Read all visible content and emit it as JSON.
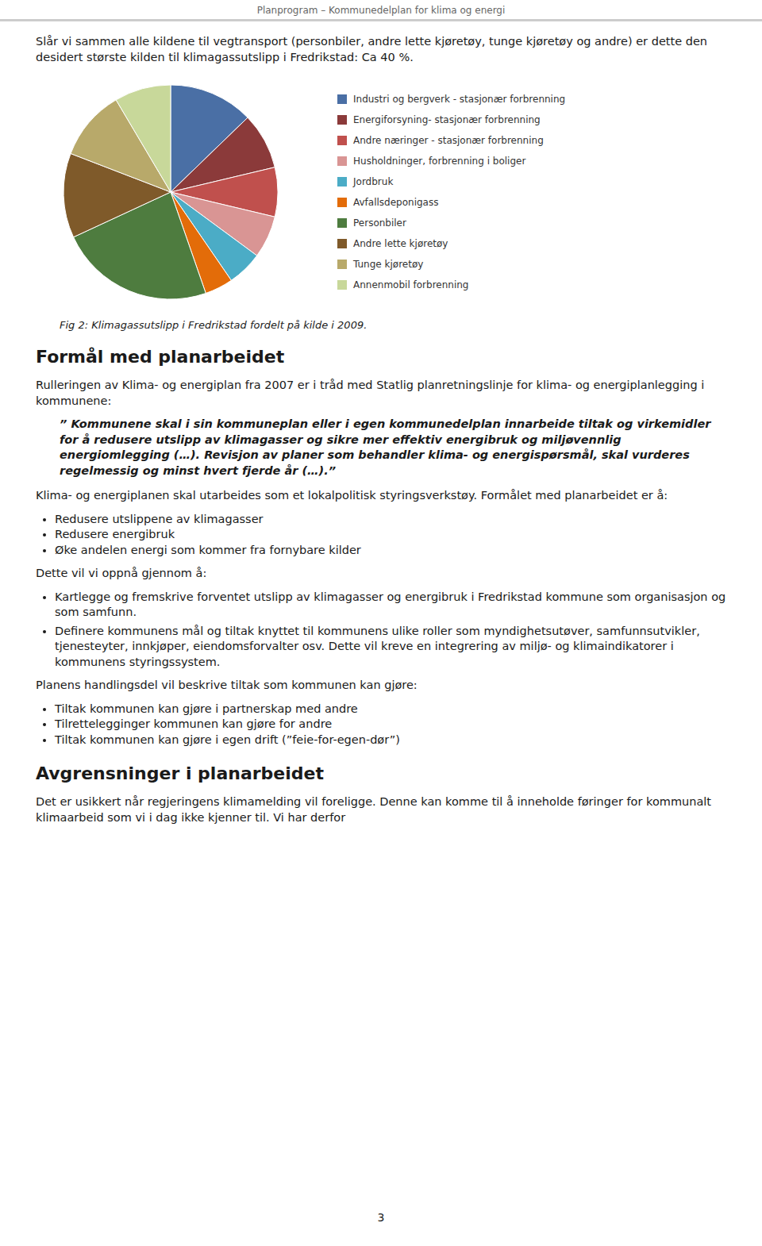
{
  "chart_data": {
    "type": "pie",
    "title": "Fig 2: Klimagassutslipp i Fredrikstad fordelt på kilde i 2009.",
    "categories": [
      "Industri og bergverk - stasjonær forbrenning",
      "Energiforsyning- stasjonær forbrenning",
      "Andre næringer - stasjonær forbrenning",
      "Husholdninger, forbrenning i boliger",
      "Jordbruk",
      "Avfallsdeponigass",
      "Personbiler",
      "Andre lette kjøretøy",
      "Tunge kjøretøy",
      "Annenmobil forbrenning"
    ],
    "values": [
      12,
      8,
      7,
      6,
      5,
      4,
      22,
      12,
      10,
      8
    ],
    "colors": [
      "#4a6fa5",
      "#8b3a3a",
      "#c0504d",
      "#d99594",
      "#4bacc6",
      "#e36c09",
      "#4e7c3f",
      "#7f5a2a",
      "#b8a96a",
      "#c8d89a"
    ],
    "legend": "right"
  },
  "page": {
    "page_title": "Planprogram – Kommunedelplan for klima og energi",
    "paragraph1": "Slår vi sammen alle kildene til vegtransport (personbiler, andre lette kjøretøy, tunge kjøretøy og andre) er dette den desidert største kilden til klimagassutslipp i Fredrikstad: Ca 40 %.",
    "section_heading": "Formål med planarbeidet",
    "section_para1": "Rulleringen av Klima- og energiplan fra 2007 er i tråd med Statlig planretningslinje for klima- og energiplanlegging i kommunene:",
    "quote_text": "” Kommunene skal i sin kommuneplan eller i egen kommunedelplan innarbeide tiltak og virkemidler for å redusere utslipp av klimagasser og sikre mer effektiv energibruk og miljøvennlig energiomlegging (…). Revisjon av planer som behandler klima- og energispørsmål, skal vurderes regelmessig og minst hvert fjerde år (…).”",
    "para2": "Klima- og energiplanen skal utarbeides som et lokalpolitisk styringsverkstøy. Formålet med planarbeidet er å:",
    "bullet1": [
      "Redusere utslippene av klimagasser",
      "Redusere energibruk",
      "Øke andelen energi som kommer fra fornybare kilder"
    ],
    "para3": "Dette vil vi oppnå gjennom å:",
    "bullet2": [
      "Kartlegge og fremskrive forventet utslipp av klimagasser og energibruk i Fredrikstad kommune som organisasjon og som samfunn.",
      "Definere kommunens mål og tiltak knyttet til kommunens ulike roller som myndighetsutøver, samfunnsutvikler, tjenesteyter, innkjøper, eiendomsforvalter osv. Dette vil kreve en integrering av miljø- og klimaindikatorer i kommunens styringssystem."
    ],
    "para4": "Planens handlingsdel vil beskrive tiltak som kommunen kan gjøre:",
    "bullet3": [
      "Tiltak kommunen kan gjøre i partnerskap med andre",
      "Tilrettelegginger kommunen kan gjøre for andre",
      "Tiltak kommunen kan gjøre i egen drift (”feie-for-egen-dør”)"
    ],
    "section2_heading": "Avgrensninger i planarbeidet",
    "section2_para": "Det er usikkert når regjeringens klimamelding vil foreligge. Denne kan komme til å inneholde føringer for kommunalt klimaarbeid som vi i dag ikke kjenner til. Vi har derfor",
    "page_number": "3"
  }
}
